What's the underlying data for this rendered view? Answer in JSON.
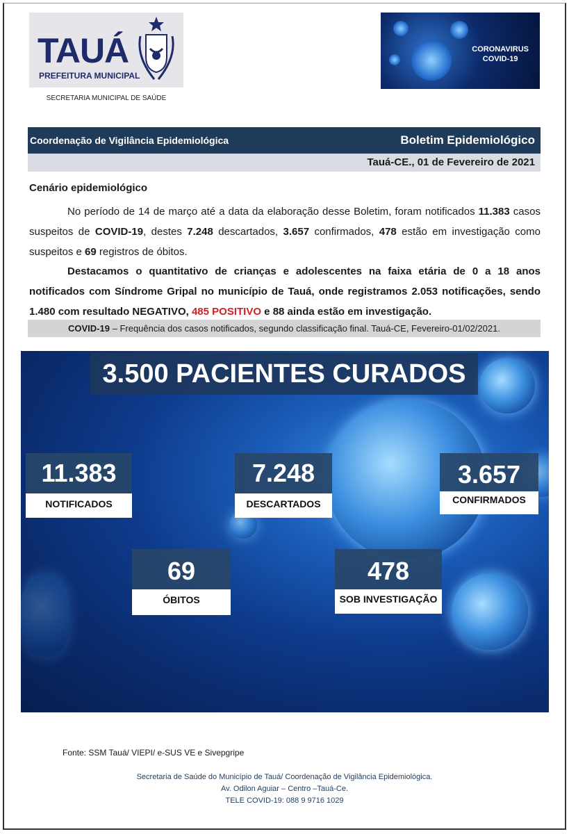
{
  "header": {
    "logo_title": "TAUÁ",
    "logo_subtitle": "PREFEITURA MUNICIPAL",
    "secretaria": "SECRETARIA MUNICIPAL DE SAÚDE",
    "covid_banner": [
      "CORONAVIRUS",
      "COVID-19"
    ]
  },
  "bar": {
    "left": "Coordenação de Vigilância Epidemiológica",
    "right": "Boletim Epidemiológico",
    "date": "Tauá-CE., 01 de Fevereiro de 2021"
  },
  "section_title": "Cenário epidemiológico",
  "para1": {
    "a": "No período de 14 de março até a data da elaboração desse Boletim, foram notificados ",
    "n1": "11.383",
    "b": " casos suspeitos de ",
    "n2": "COVID-19",
    "c": ", destes ",
    "n3": "7.248",
    "d": " descartados, ",
    "n4": "3.657",
    "e": " confirmados, ",
    "n5": "478",
    "f": " estão em investigação como suspeitos e ",
    "n6": "69",
    "g": " registros de óbitos."
  },
  "para2": {
    "a": "Destacamos o quantitativo de crianças e adolescentes na faixa etária de 0 a 18 anos notificados com Síndrome Gripal no município de Tauá, onde registramos 2.053 notificações, sendo 1.480 com resultado NEGATIVO, ",
    "red": "485 POSITIVO",
    "b": " e 88 ainda estão em investigação."
  },
  "caption": {
    "bold": "COVID-19",
    "rest": " – Frequência dos casos notificados, segundo classificação final. Tauá-CE, Fevereiro-01/02/2021."
  },
  "infographic": {
    "title": "3.500 PACIENTES CURADOS",
    "stats": [
      {
        "value": "11.383",
        "label": "NOTIFICADOS"
      },
      {
        "value": "7.248",
        "label": "DESCARTADOS"
      },
      {
        "value": "3.657",
        "label": "CONFIRMADOS"
      },
      {
        "value": "69",
        "label": "ÓBITOS"
      },
      {
        "value": "478",
        "label": "SOB INVESTIGAÇÃO"
      }
    ]
  },
  "source": "Fonte: SSM Tauá/ VIEPI/ e-SUS VE e Sivepgripe",
  "footer": [
    "Secretaria de Saúde do Município de Tauá/ Coordenação de Vigilância Epidemiológica.",
    "Av. Odilon Aguiar – Centro –Tauá-Ce.",
    "TELE COVID-19: 088 9 9716 1029"
  ],
  "colors": {
    "header_bar": "#1f3b5a",
    "highlight_red": "#d0212a",
    "stat_box": "#28466a"
  }
}
